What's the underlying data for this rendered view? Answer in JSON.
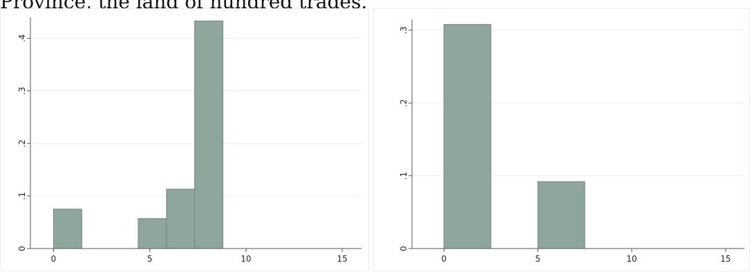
{
  "caption": "Province, the land of hundred trades.",
  "colors": {
    "bar_fill": "#8ea69b",
    "bar_stroke": "#6f877c",
    "grid": "#e9eef2",
    "axis": "#555555"
  },
  "chart_data": [
    {
      "type": "bar",
      "title": "",
      "xlabel": "",
      "ylabel": "",
      "xlim": [
        -1.2,
        16
      ],
      "ylim": [
        0,
        0.44
      ],
      "xticks": [
        0,
        5,
        10,
        15
      ],
      "xtick_labels": [
        "0",
        "5",
        "10",
        "15"
      ],
      "yticks": [
        0,
        0.1,
        0.2,
        0.3,
        0.4
      ],
      "ytick_labels": [
        "0",
        ".1",
        ".2",
        ".3",
        ".4"
      ],
      "grid": true,
      "bins": [
        {
          "x0": 0,
          "x1": 1.47,
          "value": 0.075
        },
        {
          "x0": 4.4,
          "x1": 5.87,
          "value": 0.057
        },
        {
          "x0": 5.87,
          "x1": 7.33,
          "value": 0.113
        },
        {
          "x0": 7.33,
          "x1": 8.8,
          "value": 0.433
        }
      ]
    },
    {
      "type": "bar",
      "title": "",
      "xlabel": "",
      "ylabel": "",
      "xlim": [
        -1.7,
        16
      ],
      "ylim": [
        0,
        0.315
      ],
      "xticks": [
        0,
        5,
        10,
        15
      ],
      "xtick_labels": [
        "0",
        "5",
        "10",
        "15"
      ],
      "yticks": [
        0,
        0.1,
        0.2,
        0.3
      ],
      "ytick_labels": [
        "0",
        ".1",
        ".2",
        ".3"
      ],
      "grid": true,
      "bins": [
        {
          "x0": 0,
          "x1": 2.5,
          "value": 0.308
        },
        {
          "x0": 5,
          "x1": 7.5,
          "value": 0.092
        }
      ]
    }
  ]
}
